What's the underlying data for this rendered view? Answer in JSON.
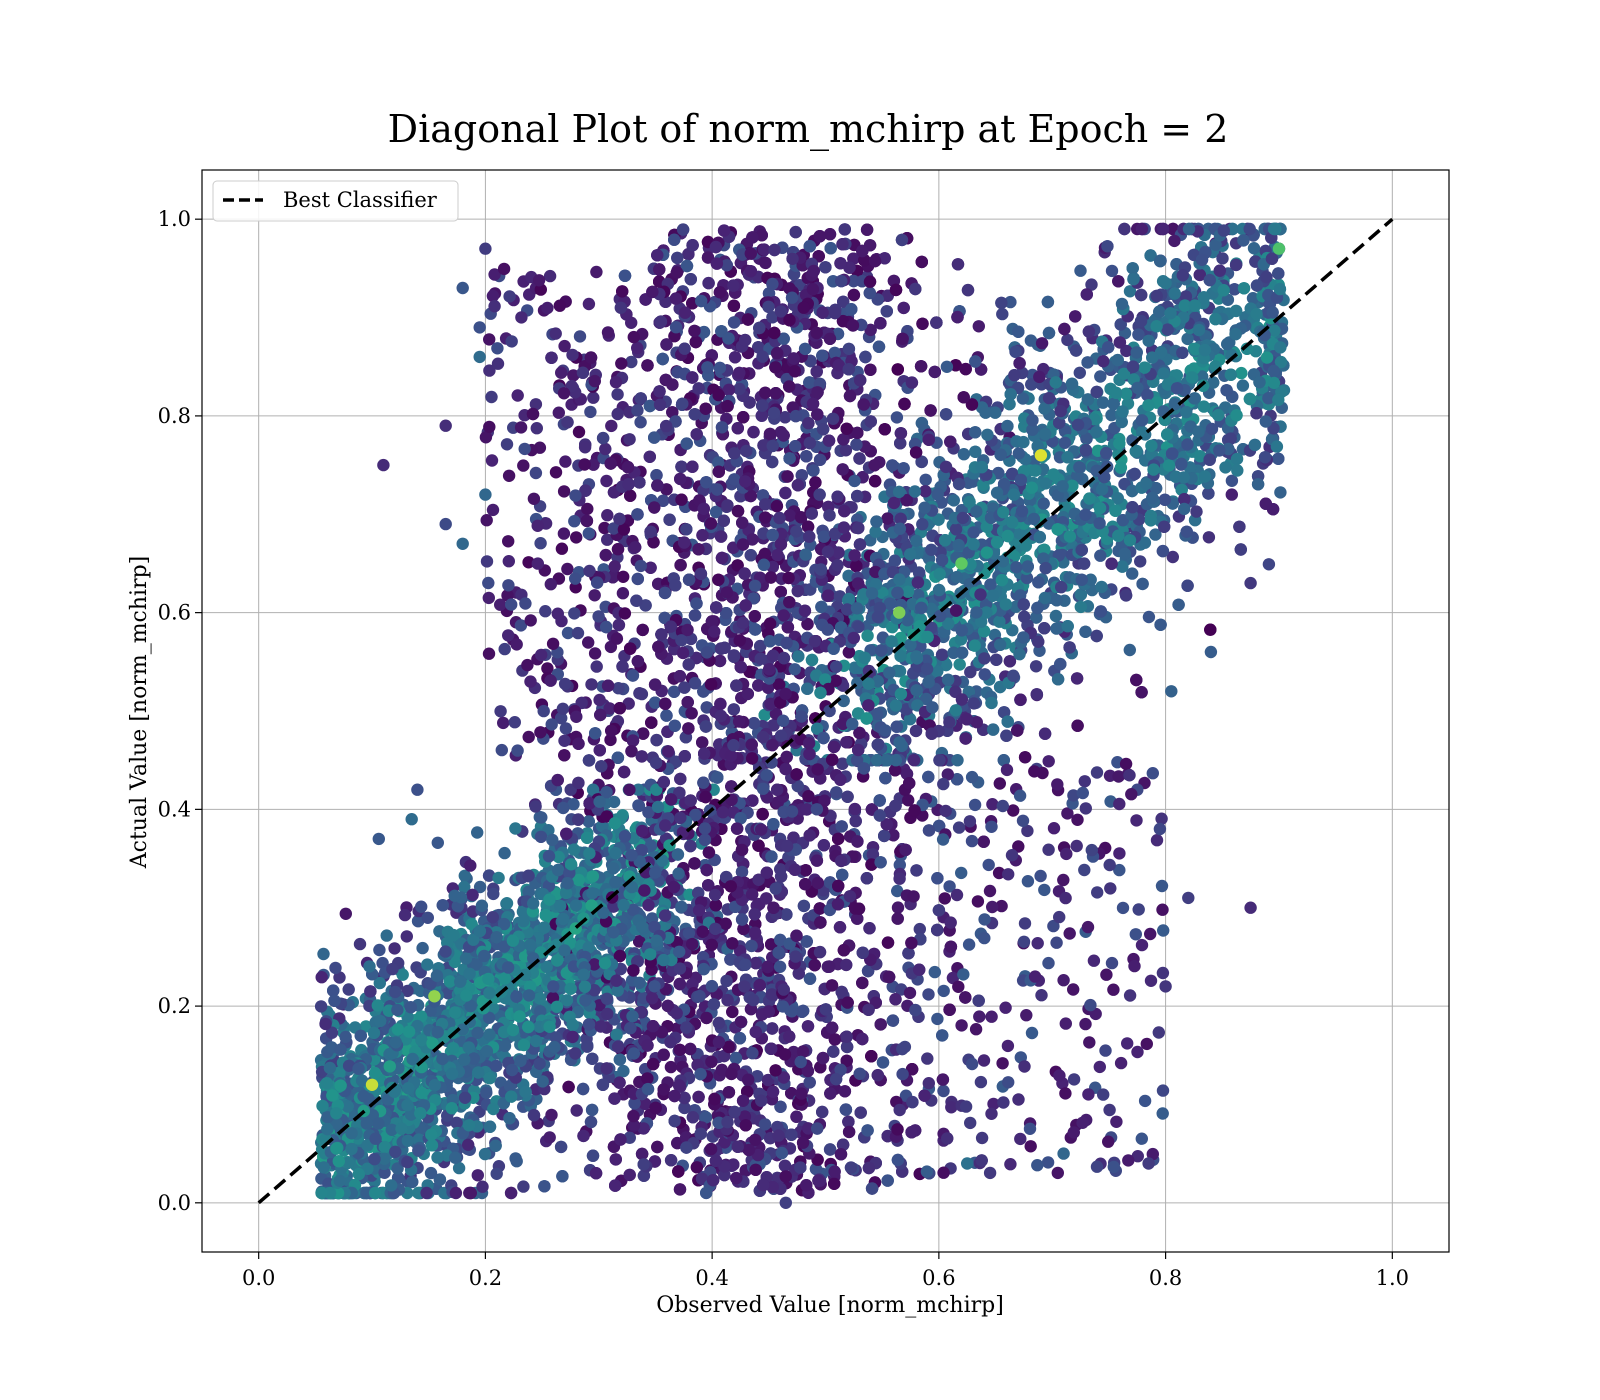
{
  "chart_data": {
    "type": "scatter",
    "title": "Diagonal Plot of norm_mchirp at Epoch = 2",
    "xlabel": "Observed Value [norm_mchirp]",
    "ylabel": "Actual Value [norm_mchirp]",
    "xlim": [
      -0.05,
      1.05
    ],
    "ylim": [
      -0.05,
      1.05
    ],
    "x_ticks": [
      "0.0",
      "0.2",
      "0.4",
      "0.6",
      "0.8",
      "1.0"
    ],
    "y_ticks": [
      "0.0",
      "0.2",
      "0.4",
      "0.6",
      "0.8",
      "1.0"
    ],
    "x_tick_values": [
      0.0,
      0.2,
      0.4,
      0.6,
      0.8,
      1.0
    ],
    "y_tick_values": [
      0.0,
      0.2,
      0.4,
      0.6,
      0.8,
      1.0
    ],
    "grid": true,
    "legend_position": "top-left",
    "colormap": "viridis",
    "reference_line": {
      "name": "Best Classifier",
      "x": [
        0.0,
        1.0
      ],
      "y": [
        0.0,
        1.0
      ],
      "color": "#000000",
      "style": "dashed"
    },
    "series": [
      {
        "kind": "scatter_cloud",
        "description_points": "representative sample of scattered observations",
        "points": [
          [
            0.11,
            0.75
          ],
          [
            0.2,
            0.97
          ],
          [
            0.18,
            0.93
          ],
          [
            0.195,
            0.89
          ],
          [
            0.195,
            0.86
          ],
          [
            0.2,
            0.72
          ],
          [
            0.165,
            0.79
          ],
          [
            0.165,
            0.69
          ],
          [
            0.18,
            0.67
          ],
          [
            0.106,
            0.37
          ],
          [
            0.135,
            0.39
          ],
          [
            0.14,
            0.42
          ],
          [
            0.82,
            0.31
          ],
          [
            0.875,
            0.3
          ],
          [
            0.8,
            0.22
          ],
          [
            0.785,
            0.04
          ],
          [
            0.745,
            0.11
          ],
          [
            0.71,
            0.05
          ],
          [
            0.84,
            0.56
          ],
          [
            0.875,
            0.63
          ],
          [
            0.805,
            0.52
          ],
          [
            0.795,
            0.38
          ],
          [
            0.775,
            0.42
          ],
          [
            0.9,
            0.97
          ],
          [
            0.69,
            0.76
          ],
          [
            0.565,
            0.59
          ],
          [
            0.1,
            0.12
          ],
          [
            0.07,
            0.015
          ],
          [
            0.625,
            0.04
          ],
          [
            0.465,
            0.0
          ]
        ],
        "density_regions": [
          {
            "x_range": [
              0.06,
              0.3
            ],
            "y_range": [
              0.01,
              0.35
            ],
            "trend": "along diagonal",
            "color_level": 0.45
          },
          {
            "x_range": [
              0.25,
              0.55
            ],
            "y_range": [
              0.01,
              0.99
            ],
            "trend": "vertical band",
            "color_level": 0.1
          },
          {
            "x_range": [
              0.55,
              0.9
            ],
            "y_range": [
              0.45,
              0.99
            ],
            "trend": "along diagonal",
            "color_level": 0.4
          },
          {
            "x_range": [
              0.55,
              0.8
            ],
            "y_range": [
              0.05,
              0.45
            ],
            "trend": "sparse",
            "color_level": 0.15
          }
        ]
      }
    ]
  },
  "colors": {
    "viridis_dark": "#440154",
    "viridis_blue": "#3b528b",
    "viridis_teal": "#21918c",
    "viridis_green": "#5ec962",
    "viridis_yellow": "#fde725",
    "grid": "#b0b0b0",
    "axis": "#000000"
  }
}
